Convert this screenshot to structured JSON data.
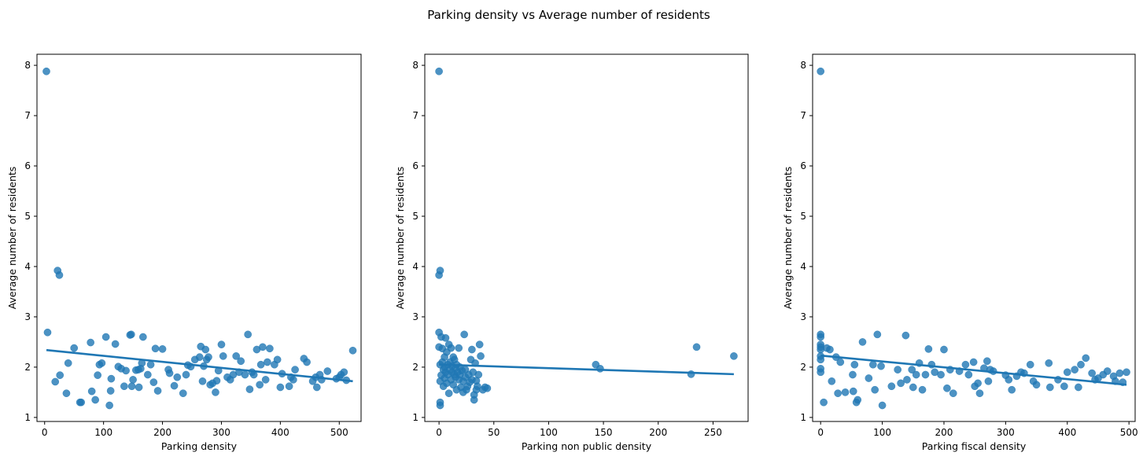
{
  "suptitle": "Parking density vs Average number of residents",
  "colors": {
    "points": "#1f77b4",
    "line": "#1f77b4"
  },
  "chart_data": [
    {
      "type": "scatter",
      "name": "parking-density",
      "title": "",
      "xlabel": "Parking density",
      "ylabel": "Average number of residents",
      "xlim": [
        -13,
        537
      ],
      "ylim": [
        0.92,
        8.22
      ],
      "xticks": [
        0,
        100,
        200,
        300,
        400,
        500
      ],
      "yticks": [
        1,
        2,
        3,
        4,
        5,
        6,
        7,
        8
      ],
      "grid": false,
      "regression": {
        "x": [
          3,
          523
        ],
        "y": [
          2.34,
          1.72
        ]
      },
      "points": [
        [
          3,
          7.88
        ],
        [
          5,
          2.69
        ],
        [
          18,
          1.71
        ],
        [
          22,
          3.92
        ],
        [
          25,
          3.83
        ],
        [
          26,
          1.84
        ],
        [
          37,
          1.48
        ],
        [
          40,
          2.08
        ],
        [
          50,
          2.38
        ],
        [
          60,
          1.3
        ],
        [
          62,
          1.3
        ],
        [
          78,
          2.49
        ],
        [
          80,
          1.52
        ],
        [
          86,
          1.35
        ],
        [
          90,
          1.84
        ],
        [
          93,
          2.05
        ],
        [
          97,
          2.08
        ],
        [
          104,
          2.6
        ],
        [
          110,
          1.24
        ],
        [
          112,
          1.53
        ],
        [
          113,
          1.77
        ],
        [
          120,
          2.46
        ],
        [
          125,
          2.01
        ],
        [
          130,
          1.97
        ],
        [
          135,
          1.62
        ],
        [
          138,
          1.93
        ],
        [
          145,
          2.64
        ],
        [
          147,
          2.65
        ],
        [
          148,
          1.62
        ],
        [
          150,
          1.75
        ],
        [
          155,
          1.94
        ],
        [
          159,
          1.95
        ],
        [
          160,
          1.6
        ],
        [
          163,
          1.97
        ],
        [
          165,
          2.08
        ],
        [
          167,
          2.6
        ],
        [
          175,
          1.85
        ],
        [
          180,
          2.05
        ],
        [
          185,
          1.7
        ],
        [
          188,
          2.37
        ],
        [
          192,
          1.53
        ],
        [
          200,
          2.36
        ],
        [
          210,
          1.95
        ],
        [
          212,
          1.88
        ],
        [
          220,
          1.63
        ],
        [
          225,
          1.8
        ],
        [
          235,
          1.48
        ],
        [
          240,
          1.85
        ],
        [
          243,
          2.04
        ],
        [
          248,
          2.01
        ],
        [
          255,
          2.15
        ],
        [
          263,
          2.2
        ],
        [
          265,
          2.41
        ],
        [
          268,
          1.72
        ],
        [
          270,
          2.02
        ],
        [
          273,
          2.35
        ],
        [
          275,
          2.15
        ],
        [
          278,
          2.2
        ],
        [
          281,
          1.65
        ],
        [
          285,
          1.68
        ],
        [
          290,
          1.5
        ],
        [
          292,
          1.73
        ],
        [
          295,
          1.93
        ],
        [
          300,
          2.45
        ],
        [
          303,
          2.22
        ],
        [
          310,
          1.8
        ],
        [
          315,
          1.75
        ],
        [
          320,
          1.85
        ],
        [
          325,
          2.22
        ],
        [
          330,
          1.9
        ],
        [
          333,
          2.12
        ],
        [
          340,
          1.85
        ],
        [
          345,
          2.65
        ],
        [
          348,
          1.56
        ],
        [
          352,
          1.9
        ],
        [
          355,
          1.85
        ],
        [
          360,
          2.35
        ],
        [
          365,
          1.65
        ],
        [
          367,
          2.05
        ],
        [
          370,
          2.4
        ],
        [
          375,
          1.75
        ],
        [
          378,
          2.1
        ],
        [
          382,
          2.37
        ],
        [
          390,
          2.05
        ],
        [
          395,
          2.15
        ],
        [
          400,
          1.6
        ],
        [
          403,
          1.87
        ],
        [
          415,
          1.62
        ],
        [
          418,
          1.8
        ],
        [
          422,
          1.75
        ],
        [
          425,
          1.95
        ],
        [
          440,
          2.17
        ],
        [
          445,
          2.1
        ],
        [
          455,
          1.72
        ],
        [
          460,
          1.8
        ],
        [
          462,
          1.6
        ],
        [
          467,
          1.85
        ],
        [
          470,
          1.75
        ],
        [
          480,
          1.92
        ],
        [
          495,
          1.77
        ],
        [
          500,
          1.8
        ],
        [
          503,
          1.85
        ],
        [
          508,
          1.9
        ],
        [
          512,
          1.74
        ],
        [
          523,
          2.33
        ]
      ]
    },
    {
      "type": "scatter",
      "name": "parking-non-public-density",
      "title": "",
      "xlabel": "Parking non public density",
      "ylabel": "Average number of residents",
      "xlim": [
        -13,
        282
      ],
      "ylim": [
        0.92,
        8.22
      ],
      "xticks": [
        0,
        50,
        100,
        150,
        200,
        250
      ],
      "yticks": [
        1,
        2,
        3,
        4,
        5,
        6,
        7,
        8
      ],
      "grid": false,
      "regression": {
        "x": [
          0,
          269
        ],
        "y": [
          2.05,
          1.86
        ]
      },
      "points": [
        [
          0,
          7.88
        ],
        [
          0,
          3.83
        ],
        [
          1,
          3.92
        ],
        [
          0,
          2.69
        ],
        [
          1,
          1.24
        ],
        [
          1,
          1.3
        ],
        [
          0,
          2.4
        ],
        [
          1,
          2.05
        ],
        [
          1,
          1.72
        ],
        [
          2,
          2.6
        ],
        [
          2,
          1.84
        ],
        [
          3,
          2.37
        ],
        [
          3,
          2.1
        ],
        [
          4,
          1.95
        ],
        [
          4,
          1.62
        ],
        [
          5,
          2.2
        ],
        [
          5,
          1.78
        ],
        [
          5,
          2.0
        ],
        [
          6,
          2.58
        ],
        [
          6,
          1.9
        ],
        [
          7,
          2.3
        ],
        [
          7,
          1.68
        ],
        [
          8,
          2.05
        ],
        [
          8,
          1.85
        ],
        [
          9,
          2.45
        ],
        [
          9,
          1.48
        ],
        [
          10,
          2.1
        ],
        [
          10,
          1.95
        ],
        [
          11,
          1.75
        ],
        [
          11,
          2.38
        ],
        [
          12,
          1.9
        ],
        [
          12,
          2.02
        ],
        [
          13,
          2.2
        ],
        [
          13,
          1.65
        ],
        [
          14,
          1.85
        ],
        [
          14,
          2.15
        ],
        [
          15,
          1.98
        ],
        [
          15,
          1.8
        ],
        [
          16,
          1.55
        ],
        [
          16,
          2.05
        ],
        [
          17,
          1.9
        ],
        [
          18,
          2.38
        ],
        [
          18,
          1.75
        ],
        [
          19,
          2.0
        ],
        [
          19,
          1.85
        ],
        [
          20,
          1.6
        ],
        [
          21,
          1.93
        ],
        [
          22,
          1.72
        ],
        [
          22,
          1.5
        ],
        [
          23,
          2.65
        ],
        [
          24,
          1.8
        ],
        [
          24,
          1.95
        ],
        [
          25,
          1.55
        ],
        [
          26,
          1.62
        ],
        [
          27,
          1.85
        ],
        [
          28,
          1.7
        ],
        [
          29,
          2.15
        ],
        [
          30,
          2.35
        ],
        [
          30,
          1.75
        ],
        [
          31,
          1.9
        ],
        [
          32,
          1.35
        ],
        [
          32,
          1.45
        ],
        [
          33,
          2.08
        ],
        [
          34,
          1.55
        ],
        [
          34,
          1.73
        ],
        [
          35,
          1.62
        ],
        [
          36,
          1.85
        ],
        [
          37,
          2.45
        ],
        [
          38,
          2.22
        ],
        [
          40,
          1.55
        ],
        [
          42,
          1.6
        ],
        [
          44,
          1.58
        ],
        [
          143,
          2.05
        ],
        [
          147,
          1.97
        ],
        [
          230,
          1.86
        ],
        [
          235,
          2.4
        ],
        [
          269,
          2.22
        ]
      ]
    },
    {
      "type": "scatter",
      "name": "parking-fiscal-density",
      "title": "",
      "xlabel": "Parking fiscal density",
      "ylabel": "Average number of residents",
      "xlim": [
        -13,
        510
      ],
      "ylim": [
        0.92,
        8.22
      ],
      "xticks": [
        0,
        100,
        200,
        300,
        400,
        500
      ],
      "yticks": [
        1,
        2,
        3,
        4,
        5,
        6,
        7,
        8
      ],
      "grid": false,
      "regression": {
        "x": [
          0,
          496
        ],
        "y": [
          2.23,
          1.65
        ]
      },
      "points": [
        [
          0,
          7.88
        ],
        [
          0,
          2.65
        ],
        [
          0,
          2.6
        ],
        [
          0,
          2.45
        ],
        [
          0,
          2.4
        ],
        [
          0,
          2.35
        ],
        [
          0,
          2.22
        ],
        [
          0,
          2.15
        ],
        [
          0,
          1.97
        ],
        [
          0,
          1.9
        ],
        [
          5,
          1.3
        ],
        [
          10,
          2.38
        ],
        [
          15,
          2.35
        ],
        [
          18,
          1.72
        ],
        [
          25,
          2.2
        ],
        [
          28,
          1.48
        ],
        [
          32,
          2.1
        ],
        [
          40,
          1.5
        ],
        [
          52,
          1.85
        ],
        [
          53,
          1.52
        ],
        [
          55,
          2.05
        ],
        [
          58,
          1.3
        ],
        [
          60,
          1.35
        ],
        [
          68,
          2.5
        ],
        [
          78,
          1.78
        ],
        [
          85,
          2.05
        ],
        [
          88,
          1.55
        ],
        [
          92,
          2.65
        ],
        [
          98,
          2.02
        ],
        [
          100,
          1.24
        ],
        [
          115,
          1.62
        ],
        [
          125,
          1.95
        ],
        [
          130,
          1.68
        ],
        [
          138,
          2.63
        ],
        [
          140,
          1.75
        ],
        [
          148,
          1.95
        ],
        [
          150,
          1.6
        ],
        [
          155,
          1.85
        ],
        [
          160,
          2.08
        ],
        [
          165,
          1.55
        ],
        [
          170,
          1.85
        ],
        [
          175,
          2.36
        ],
        [
          180,
          2.05
        ],
        [
          185,
          1.9
        ],
        [
          195,
          1.85
        ],
        [
          200,
          2.35
        ],
        [
          205,
          1.58
        ],
        [
          210,
          1.95
        ],
        [
          215,
          1.48
        ],
        [
          225,
          1.92
        ],
        [
          235,
          2.05
        ],
        [
          240,
          1.85
        ],
        [
          248,
          2.1
        ],
        [
          250,
          1.62
        ],
        [
          255,
          1.68
        ],
        [
          258,
          1.48
        ],
        [
          265,
          1.98
        ],
        [
          270,
          2.12
        ],
        [
          272,
          1.72
        ],
        [
          275,
          1.95
        ],
        [
          280,
          1.92
        ],
        [
          300,
          1.84
        ],
        [
          305,
          1.75
        ],
        [
          310,
          1.55
        ],
        [
          318,
          1.82
        ],
        [
          325,
          1.9
        ],
        [
          330,
          1.88
        ],
        [
          340,
          2.05
        ],
        [
          345,
          1.72
        ],
        [
          350,
          1.65
        ],
        [
          370,
          2.08
        ],
        [
          372,
          1.6
        ],
        [
          385,
          1.75
        ],
        [
          395,
          1.62
        ],
        [
          400,
          1.9
        ],
        [
          412,
          1.95
        ],
        [
          418,
          1.6
        ],
        [
          422,
          2.05
        ],
        [
          430,
          2.18
        ],
        [
          440,
          1.88
        ],
        [
          445,
          1.75
        ],
        [
          450,
          1.78
        ],
        [
          458,
          1.85
        ],
        [
          465,
          1.92
        ],
        [
          475,
          1.82
        ],
        [
          478,
          1.72
        ],
        [
          485,
          1.88
        ],
        [
          490,
          1.7
        ],
        [
          496,
          1.9
        ]
      ]
    }
  ]
}
